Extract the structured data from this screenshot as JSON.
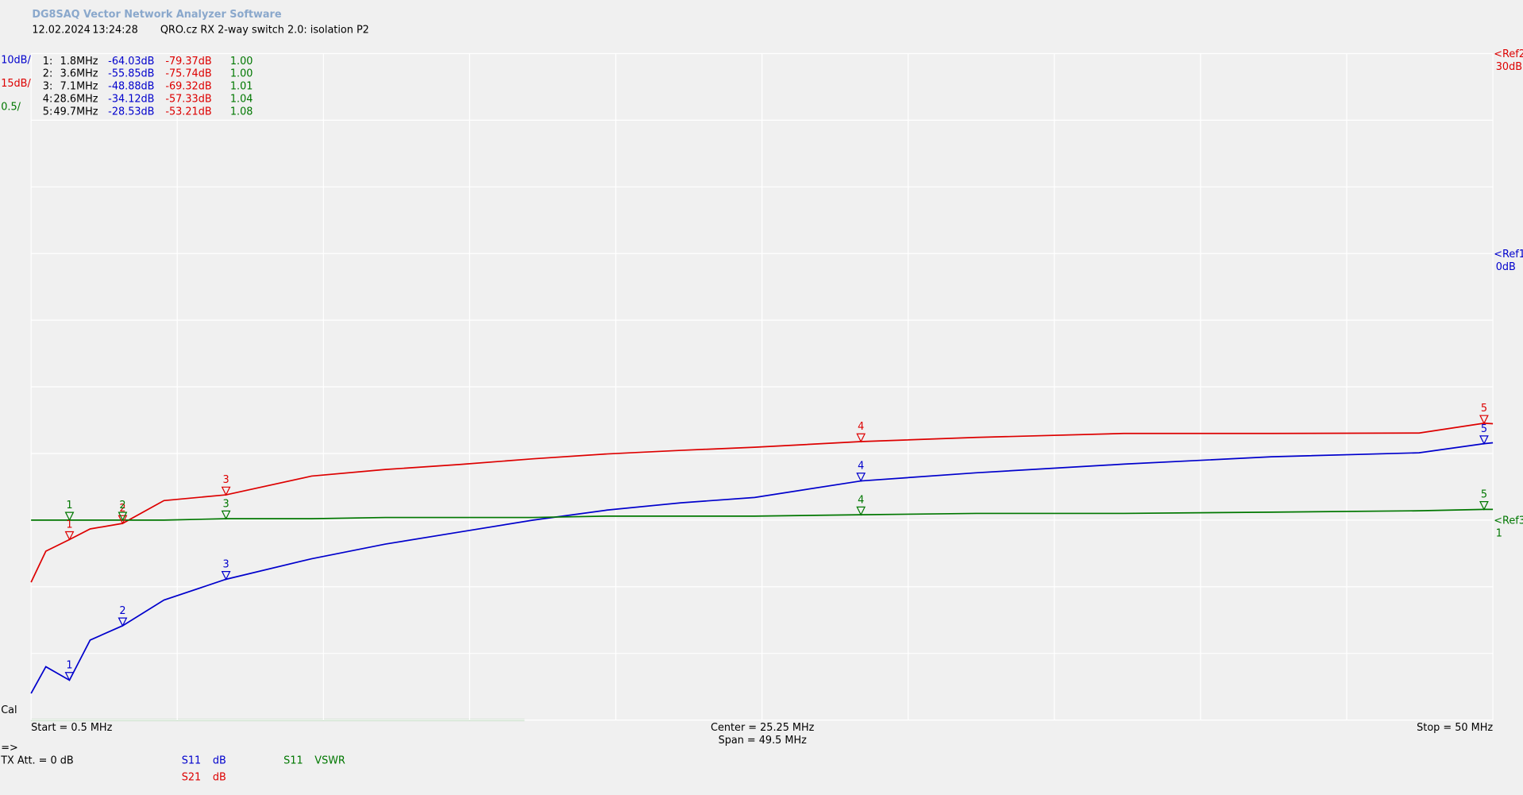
{
  "chart_data": {
    "type": "line",
    "title": "DG8SAQ Vector Network Analyzer Software",
    "date": "12.02.2024",
    "time": "13:24:28",
    "subtitle": "QRO.cz RX 2-way switch 2.0: isolation P2",
    "scales": [
      {
        "label": "10dB/",
        "color": "#0000cc"
      },
      {
        "label": "15dB/",
        "color": "#dd0000"
      },
      {
        "label": "0.5/",
        "color": "#007700"
      }
    ],
    "refs": [
      {
        "label": "<Ref2",
        "value_label": "30dB",
        "color": "#dd0000",
        "axis": "y2",
        "value": 30
      },
      {
        "label": "<Ref1",
        "value_label": "0dB",
        "color": "#0000cc",
        "axis": "y",
        "value": 0
      },
      {
        "label": "<Ref3",
        "value_label": "1",
        "color": "#007700",
        "axis": "y3",
        "value": 1
      }
    ],
    "xlim": [
      0.5,
      50
    ],
    "xticks": [
      0.5,
      5.45,
      10.4,
      15.35,
      20.3,
      25.25,
      30.2,
      35.15,
      40.1,
      45.05,
      50
    ],
    "ylim": [
      -70,
      30
    ],
    "yticks": [
      30,
      20,
      10,
      0,
      -10,
      -20,
      -30,
      -40,
      -50,
      -60,
      -70
    ],
    "y2lim": [
      -120,
      30
    ],
    "y3lim": [
      -0.5,
      4.5
    ],
    "grid": true,
    "x": [
      0.5,
      1,
      1.8,
      2.5,
      3.6,
      5,
      7.1,
      10,
      12.5,
      15,
      17.5,
      20,
      22.5,
      25,
      28.6,
      32.5,
      37.5,
      42.5,
      47.5,
      49.7,
      50
    ],
    "series": [
      {
        "name": "S11",
        "unit": "dB",
        "color": "#0000cc",
        "axis": "y",
        "values": [
          -66,
          -62,
          -64.03,
          -58,
          -55.85,
          -52,
          -48.88,
          -45.8,
          -43.6,
          -41.8,
          -40,
          -38.5,
          -37.4,
          -36.6,
          -34.12,
          -32.9,
          -31.6,
          -30.5,
          -29.9,
          -28.53,
          -28.4
        ]
      },
      {
        "name": "S21",
        "unit": "dB",
        "color": "#dd0000",
        "axis": "y2",
        "values": [
          -89,
          -82,
          -79.37,
          -77,
          -75.74,
          -70.6,
          -69.32,
          -65.1,
          -63.6,
          -62.5,
          -61.2,
          -60.1,
          -59.3,
          -58.6,
          -57.33,
          -56.4,
          -55.5,
          -55.5,
          -55.4,
          -53.21,
          -53.3
        ]
      },
      {
        "name": "S11",
        "unit": "VSWR",
        "color": "#007700",
        "axis": "y3",
        "values": [
          1,
          1,
          1,
          1,
          1,
          1,
          1.01,
          1.01,
          1.02,
          1.02,
          1.02,
          1.03,
          1.03,
          1.03,
          1.04,
          1.05,
          1.05,
          1.06,
          1.07,
          1.08,
          1.08
        ]
      }
    ],
    "markers": [
      {
        "index_label": "1:",
        "label": "1",
        "x": 1.8,
        "x_label": "1.8MHz",
        "s11": -64.03,
        "s11_label": "-64.03dB",
        "s21": -79.37,
        "s21_label": "-79.37dB",
        "vswr": 1.0,
        "vswr_label": "1.00"
      },
      {
        "index_label": "2:",
        "label": "2",
        "x": 3.6,
        "x_label": "3.6MHz",
        "s11": -55.85,
        "s11_label": "-55.85dB",
        "s21": -75.74,
        "s21_label": "-75.74dB",
        "vswr": 1.0,
        "vswr_label": "1.00"
      },
      {
        "index_label": "3:",
        "label": "3",
        "x": 7.1,
        "x_label": "7.1MHz",
        "s11": -48.88,
        "s11_label": "-48.88dB",
        "s21": -69.32,
        "s21_label": "-69.32dB",
        "vswr": 1.01,
        "vswr_label": "1.01"
      },
      {
        "index_label": "4:",
        "label": "4",
        "x": 28.6,
        "x_label": "28.6MHz",
        "s11": -34.12,
        "s11_label": "-34.12dB",
        "s21": -57.33,
        "s21_label": "-57.33dB",
        "vswr": 1.04,
        "vswr_label": "1.04"
      },
      {
        "index_label": "5:",
        "label": "5",
        "x": 49.7,
        "x_label": "49.7MHz",
        "s11": -28.53,
        "s11_label": "-28.53dB",
        "s21": -53.21,
        "s21_label": "-53.21dB",
        "vswr": 1.08,
        "vswr_label": "1.08"
      }
    ],
    "cal_label": "Cal",
    "start_label": "Start = 0.5 MHz",
    "center_label": "Center = 25.25 MHz",
    "span_label": "Span = 49.5 MHz",
    "stop_label": "Stop = 50 MHz",
    "prompt": "=>",
    "tx_att": "TX Att.  = 0 dB"
  }
}
